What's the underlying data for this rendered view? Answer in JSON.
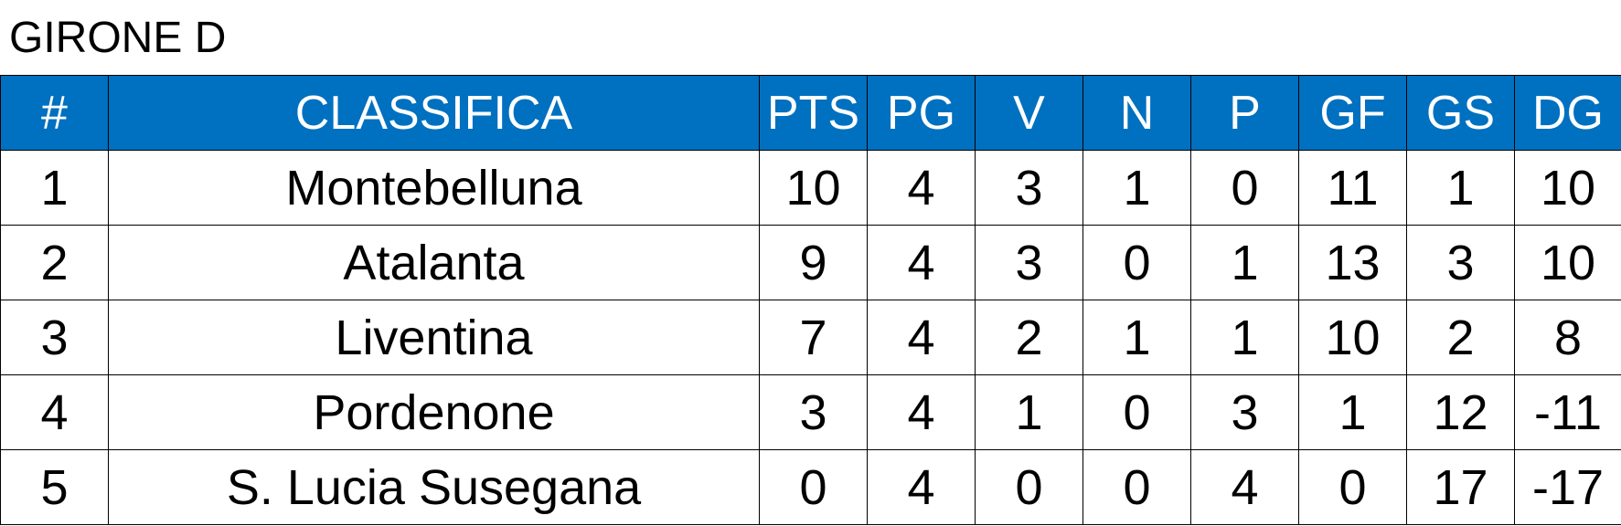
{
  "title": "GIRONE D",
  "table": {
    "headers": [
      "#",
      "CLASSIFICA",
      "PTS",
      "PG",
      "V",
      "N",
      "P",
      "GF",
      "GS",
      "DG"
    ],
    "rows": [
      [
        "1",
        "Montebelluna",
        "10",
        "4",
        "3",
        "1",
        "0",
        "11",
        "1",
        "10"
      ],
      [
        "2",
        "Atalanta",
        "9",
        "4",
        "3",
        "0",
        "1",
        "13",
        "3",
        "10"
      ],
      [
        "3",
        "Liventina",
        "7",
        "4",
        "2",
        "1",
        "1",
        "10",
        "2",
        "8"
      ],
      [
        "4",
        "Pordenone",
        "3",
        "4",
        "1",
        "0",
        "3",
        "1",
        "12",
        "-11"
      ],
      [
        "5",
        "S. Lucia Susegana",
        "0",
        "4",
        "0",
        "0",
        "4",
        "0",
        "17",
        "-17"
      ]
    ]
  },
  "colors": {
    "header_bg": "#0070c0",
    "header_text": "#ffffff",
    "border": "#000000"
  }
}
